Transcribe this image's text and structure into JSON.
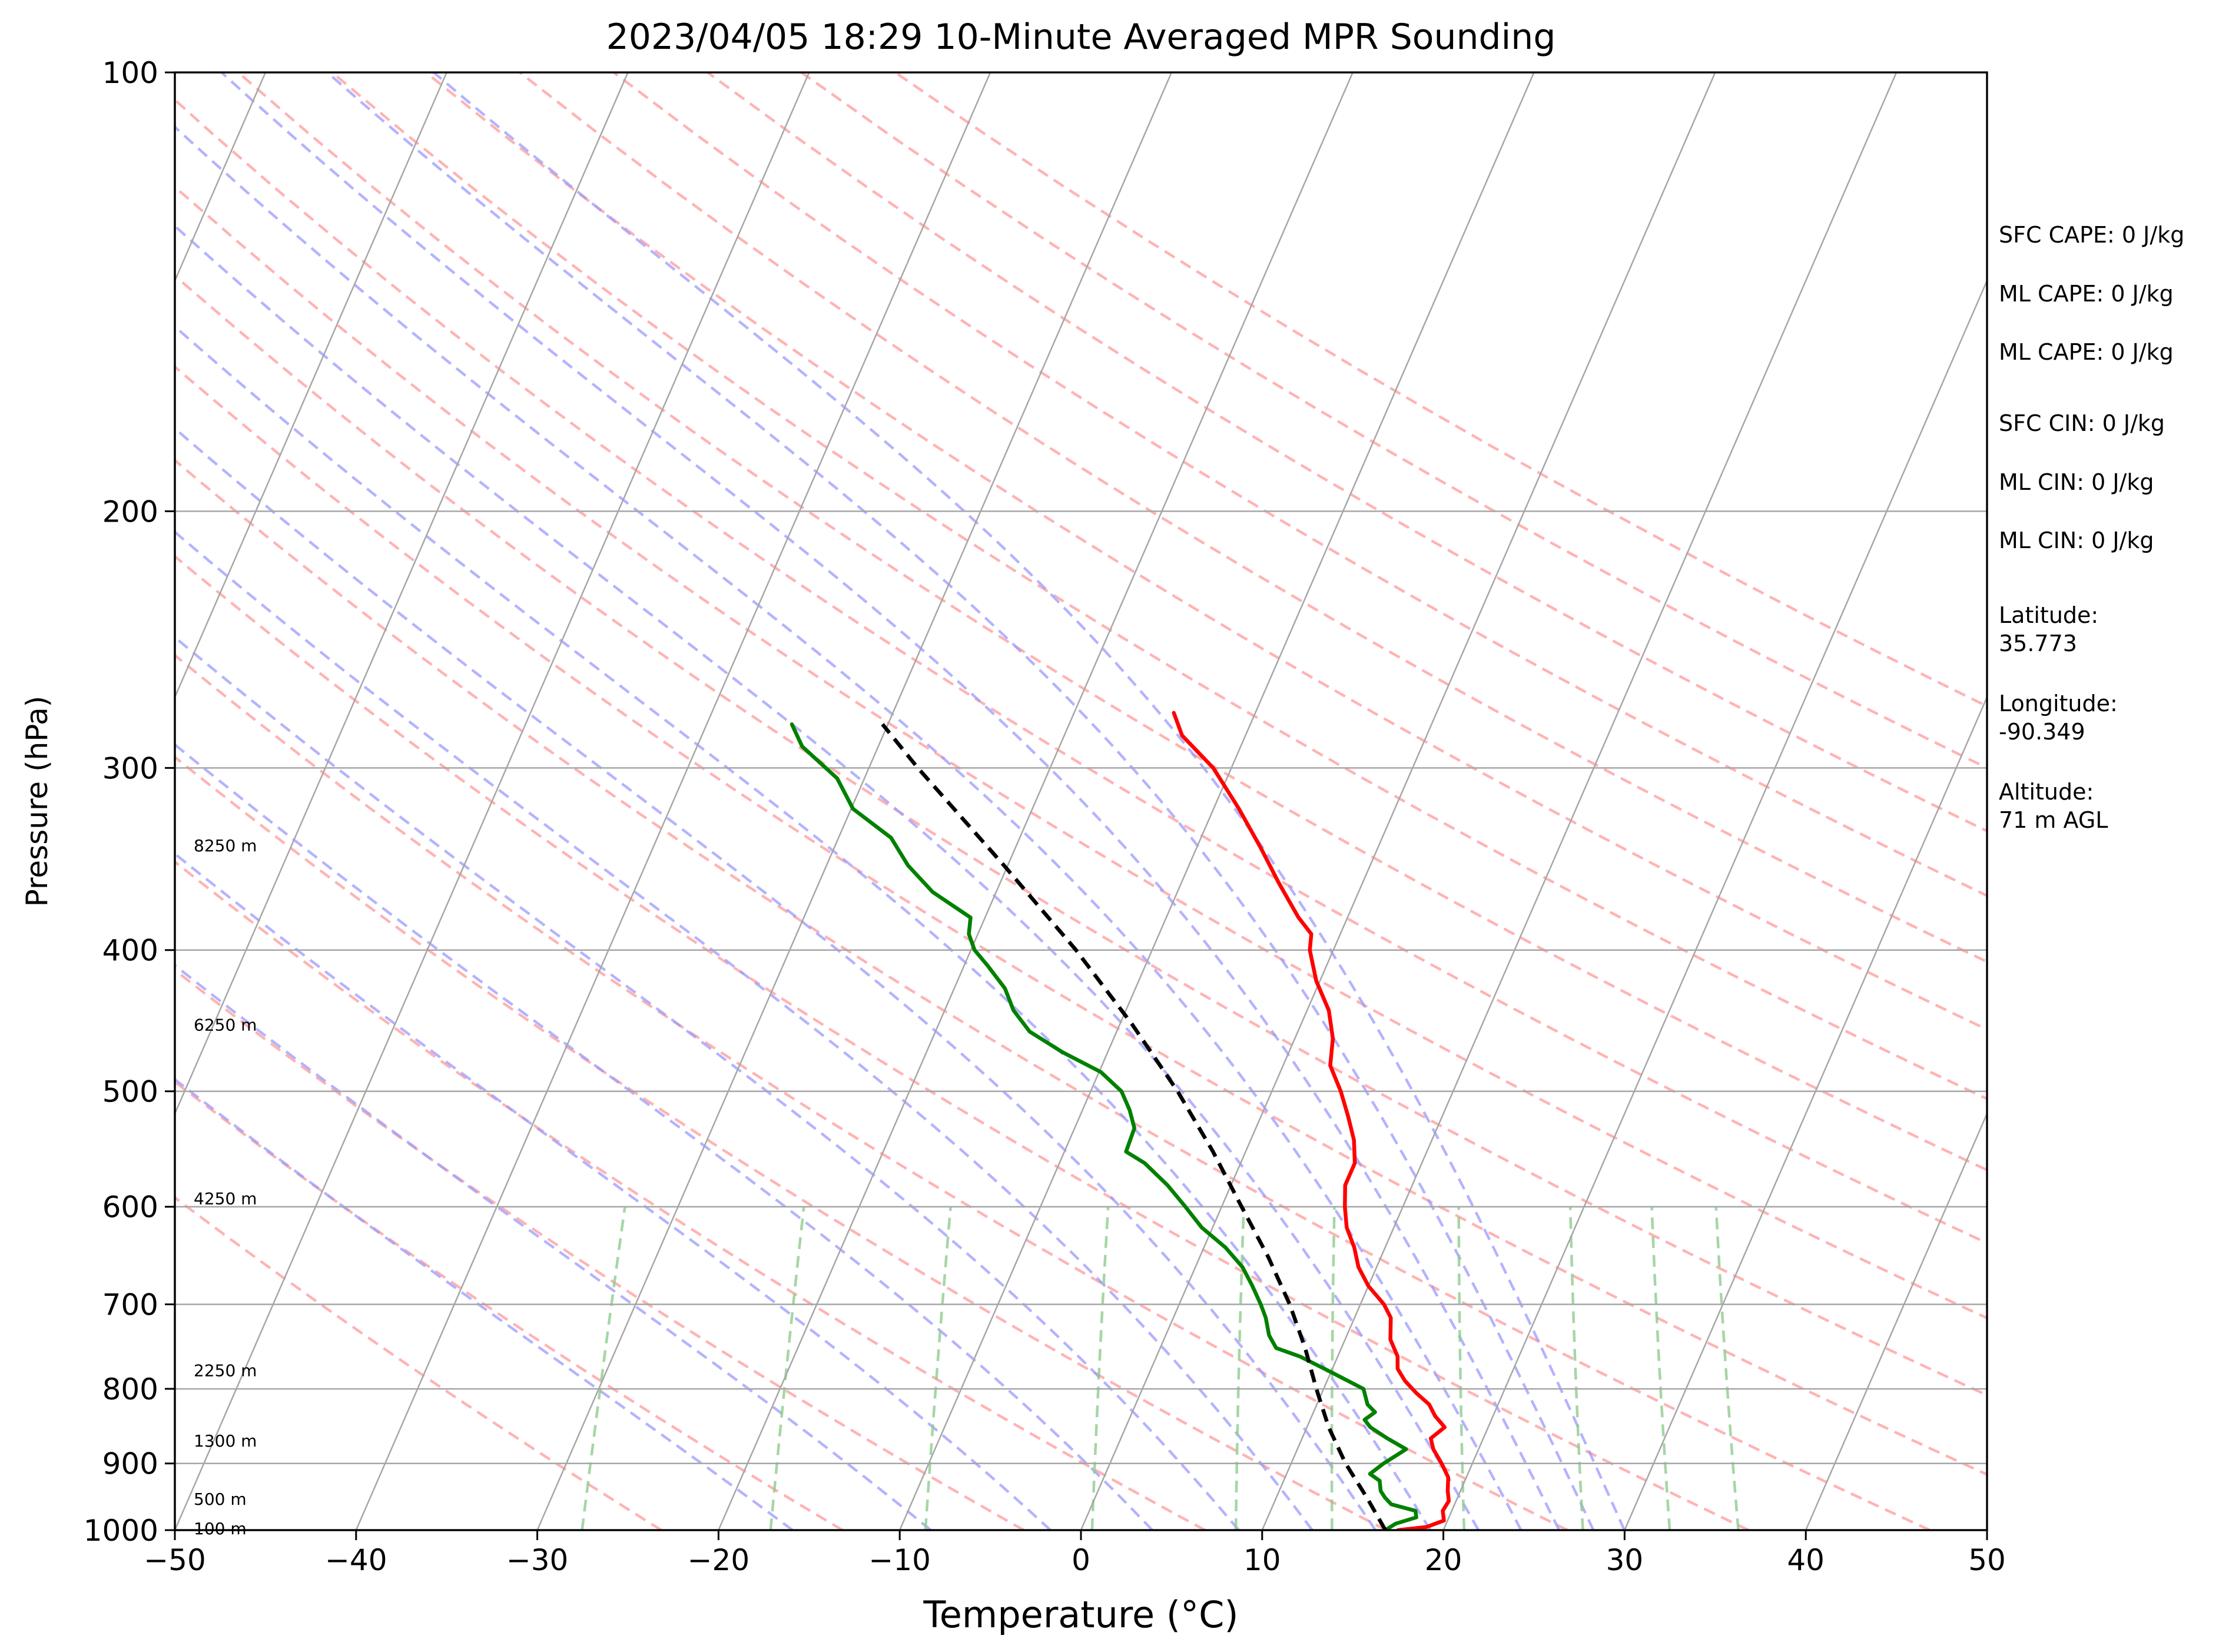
{
  "chart_data": {
    "type": "line",
    "title": "2023/04/05 18:29 10-Minute Averaged MPR Sounding",
    "xlabel": "Temperature (°C)",
    "ylabel": "Pressure (hPa)",
    "xlim": [
      -50,
      50
    ],
    "ylim": [
      1000,
      100
    ],
    "y_scale": "log",
    "skew": "skew-T log-P",
    "grid": true,
    "x_ticks": [
      -50,
      -40,
      -30,
      -20,
      -10,
      0,
      10,
      20,
      30,
      40,
      50
    ],
    "x_tick_labels": [
      "−50",
      "−40",
      "−30",
      "−20",
      "−10",
      "0",
      "10",
      "20",
      "30",
      "40",
      "50"
    ],
    "y_ticks": [
      1000,
      900,
      800,
      700,
      600,
      500,
      400,
      300,
      200,
      100
    ],
    "y_tick_labels": [
      "1000",
      "900",
      "800",
      "700",
      "600",
      "500",
      "400",
      "300",
      "200",
      "100"
    ],
    "height_labels": [
      {
        "text": "100 m",
        "p": 997
      },
      {
        "text": "500 m",
        "p": 952
      },
      {
        "text": "1300 m",
        "p": 868
      },
      {
        "text": "2250 m",
        "p": 777
      },
      {
        "text": "4250 m",
        "p": 592
      },
      {
        "text": "6250 m",
        "p": 450
      },
      {
        "text": "8250 m",
        "p": 339
      }
    ],
    "annotations": [
      "SFC CAPE: 0 J/kg",
      "ML CAPE: 0 J/kg",
      "ML CAPE: 0 J/kg",
      "SFC CIN: 0 J/kg",
      "ML CIN: 0 J/kg",
      "ML CIN: 0 J/kg",
      "Latitude:\n35.773",
      "Longitude:\n-90.349",
      "Altitude:\n71 m AGL"
    ],
    "series": [
      {
        "color": "#ff0000",
        "kind": "temperature",
        "points": [
          [
            1000,
            17.5
          ],
          [
            995,
            19.0
          ],
          [
            985,
            19.8
          ],
          [
            970,
            19.5
          ],
          [
            955,
            19.6
          ],
          [
            940,
            19.3
          ],
          [
            920,
            19.0
          ],
          [
            900,
            18.3
          ],
          [
            880,
            17.5
          ],
          [
            865,
            17.1
          ],
          [
            850,
            17.6
          ],
          [
            835,
            16.8
          ],
          [
            820,
            16.2
          ],
          [
            805,
            15.2
          ],
          [
            790,
            14.3
          ],
          [
            775,
            13.6
          ],
          [
            760,
            13.3
          ],
          [
            740,
            12.5
          ],
          [
            715,
            12.0
          ],
          [
            700,
            11.3
          ],
          [
            680,
            10.0
          ],
          [
            660,
            9.0
          ],
          [
            640,
            8.3
          ],
          [
            620,
            7.4
          ],
          [
            600,
            6.8
          ],
          [
            580,
            6.3
          ],
          [
            560,
            6.3
          ],
          [
            540,
            5.7
          ],
          [
            520,
            4.8
          ],
          [
            500,
            3.8
          ],
          [
            480,
            2.6
          ],
          [
            460,
            2.1
          ],
          [
            440,
            1.2
          ],
          [
            420,
            -0.2
          ],
          [
            400,
            -1.3
          ],
          [
            390,
            -1.6
          ],
          [
            380,
            -2.7
          ],
          [
            360,
            -4.6
          ],
          [
            340,
            -6.5
          ],
          [
            320,
            -8.6
          ],
          [
            300,
            -11.0
          ],
          [
            285,
            -13.5
          ],
          [
            275,
            -14.5
          ]
        ]
      },
      {
        "color": "#008000",
        "kind": "dewpoint",
        "points": [
          [
            1000,
            16.8
          ],
          [
            990,
            17.2
          ],
          [
            980,
            18.2
          ],
          [
            970,
            18.0
          ],
          [
            960,
            16.5
          ],
          [
            950,
            16.0
          ],
          [
            940,
            15.6
          ],
          [
            925,
            15.3
          ],
          [
            915,
            14.6
          ],
          [
            900,
            15.1
          ],
          [
            880,
            16.0
          ],
          [
            865,
            14.7
          ],
          [
            850,
            13.5
          ],
          [
            840,
            13.0
          ],
          [
            830,
            13.4
          ],
          [
            820,
            12.8
          ],
          [
            800,
            12.2
          ],
          [
            780,
            10.1
          ],
          [
            760,
            7.9
          ],
          [
            750,
            6.4
          ],
          [
            735,
            5.7
          ],
          [
            715,
            5.1
          ],
          [
            700,
            4.5
          ],
          [
            680,
            3.6
          ],
          [
            660,
            2.6
          ],
          [
            640,
            1.2
          ],
          [
            620,
            -0.6
          ],
          [
            600,
            -2.0
          ],
          [
            580,
            -3.5
          ],
          [
            560,
            -5.3
          ],
          [
            550,
            -6.6
          ],
          [
            530,
            -6.7
          ],
          [
            515,
            -7.4
          ],
          [
            500,
            -8.3
          ],
          [
            485,
            -9.9
          ],
          [
            470,
            -12.5
          ],
          [
            455,
            -14.8
          ],
          [
            440,
            -16.2
          ],
          [
            425,
            -17.2
          ],
          [
            410,
            -18.7
          ],
          [
            400,
            -19.8
          ],
          [
            390,
            -20.5
          ],
          [
            380,
            -20.8
          ],
          [
            365,
            -23.5
          ],
          [
            350,
            -25.5
          ],
          [
            335,
            -27.1
          ],
          [
            320,
            -29.9
          ],
          [
            305,
            -31.5
          ],
          [
            290,
            -34.2
          ],
          [
            280,
            -35.3
          ]
        ]
      },
      {
        "color": "#000000",
        "kind": "parcel",
        "dashed": true,
        "points": [
          [
            1000,
            16.8
          ],
          [
            950,
            15.0
          ],
          [
            900,
            13.0
          ],
          [
            850,
            11.2
          ],
          [
            800,
            9.6
          ],
          [
            750,
            8.0
          ],
          [
            700,
            6.1
          ],
          [
            650,
            3.8
          ],
          [
            600,
            1.1
          ],
          [
            550,
            -1.8
          ],
          [
            500,
            -5.2
          ],
          [
            450,
            -9.3
          ],
          [
            400,
            -14.2
          ],
          [
            350,
            -20.2
          ],
          [
            300,
            -27.3
          ],
          [
            280,
            -30.3
          ]
        ]
      }
    ],
    "reference_lines": {
      "isotherms": [
        -150,
        -140,
        -130,
        -120,
        -110,
        -100,
        -90,
        -80,
        -70,
        -60,
        -50,
        -40,
        -30,
        -20,
        -10,
        0,
        10,
        20,
        30,
        40,
        50
      ],
      "dry_adiabats_theta_K": [
        250,
        260,
        270,
        280,
        290,
        300,
        310,
        320,
        330,
        340,
        350,
        360,
        370,
        380,
        390,
        400,
        410,
        420,
        430,
        440
      ],
      "moist_adiabats_thetae_K": [
        260,
        270,
        280,
        290,
        300,
        310,
        320,
        330,
        340,
        350,
        360,
        370,
        380
      ],
      "mixing_ratio_gkg": [
        0.4,
        1,
        2,
        4,
        7,
        10,
        16,
        24,
        32,
        40
      ]
    },
    "colors": {
      "temperature": "#ff0000",
      "dewpoint": "#008000",
      "parcel": "#000000",
      "isotherm": "#a6a6a6",
      "dry_adiabat": "#ff9a9a",
      "moist_adiabat": "#9a9aff",
      "mixing_ratio": "#8fcc8f"
    }
  }
}
